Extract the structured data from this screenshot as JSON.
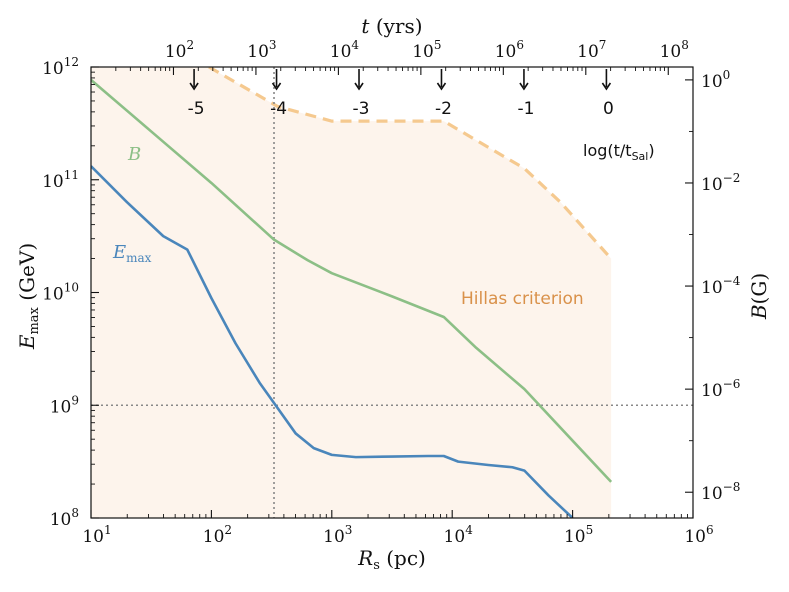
{
  "chart_data": {
    "type": "line",
    "xlabel": "R_s (pc)",
    "xlabel_main": "R",
    "xlabel_sub": "s",
    "xlabel_unit": " (pc)",
    "ylabel_left": "E_max (GeV)",
    "ylabel_left_main": "E",
    "ylabel_left_sub": "max",
    "ylabel_left_unit": " (GeV)",
    "ylabel_right": "B(G)",
    "ylabel_right_main": "B",
    "ylabel_right_unit": "(G)",
    "top_label": "t (yrs)",
    "top_label_main": "t",
    "top_label_unit": " (yrs)",
    "xlim_log10": [
      1,
      6
    ],
    "ylim_left_log10": [
      8,
      12
    ],
    "ylim_right_log10": [
      -8.5,
      0.25
    ],
    "toplim_log10": [
      1,
      8.3
    ],
    "x_ticks": [
      {
        "base": "10",
        "exp": "1"
      },
      {
        "base": "10",
        "exp": "2"
      },
      {
        "base": "10",
        "exp": "3"
      },
      {
        "base": "10",
        "exp": "4"
      },
      {
        "base": "10",
        "exp": "5"
      },
      {
        "base": "10",
        "exp": "6"
      }
    ],
    "left_ticks": [
      {
        "base": "10",
        "exp": "8"
      },
      {
        "base": "10",
        "exp": "9"
      },
      {
        "base": "10",
        "exp": "10"
      },
      {
        "base": "10",
        "exp": "11"
      },
      {
        "base": "10",
        "exp": "12"
      }
    ],
    "right_ticks": [
      {
        "base": "10",
        "exp": "−8"
      },
      {
        "base": "10",
        "exp": "−6"
      },
      {
        "base": "10",
        "exp": "−4"
      },
      {
        "base": "10",
        "exp": "−2"
      },
      {
        "base": "10",
        "exp": "0"
      }
    ],
    "top_ticks": [
      {
        "base": "10",
        "exp": "2"
      },
      {
        "base": "10",
        "exp": "3"
      },
      {
        "base": "10",
        "exp": "4"
      },
      {
        "base": "10",
        "exp": "5"
      },
      {
        "base": "10",
        "exp": "6"
      },
      {
        "base": "10",
        "exp": "7"
      },
      {
        "base": "10",
        "exp": "8"
      }
    ],
    "series": [
      {
        "name": "B",
        "label_main": "B",
        "axis": "right",
        "color": "#8cbf86",
        "points": [
          [
            1.0,
            0.0
          ],
          [
            1.5,
            -1.0
          ],
          [
            2.0,
            -2.0
          ],
          [
            2.52,
            -3.1
          ],
          [
            2.8,
            -3.5
          ],
          [
            3.0,
            -3.75
          ],
          [
            3.5,
            -4.2
          ],
          [
            3.93,
            -4.6
          ],
          [
            4.2,
            -5.2
          ],
          [
            4.6,
            -6.0
          ],
          [
            5.0,
            -7.0
          ],
          [
            5.32,
            -7.8
          ]
        ]
      },
      {
        "name": "E_max",
        "label_main": "E",
        "label_sub": "max",
        "axis": "left",
        "color": "#4a86bb",
        "points": [
          [
            1.0,
            11.12
          ],
          [
            1.3,
            10.8
          ],
          [
            1.6,
            10.5
          ],
          [
            1.8,
            10.38
          ],
          [
            2.0,
            9.95
          ],
          [
            2.2,
            9.55
          ],
          [
            2.4,
            9.2
          ],
          [
            2.5,
            9.05
          ],
          [
            2.7,
            8.75
          ],
          [
            2.85,
            8.62
          ],
          [
            3.0,
            8.56
          ],
          [
            3.2,
            8.54
          ],
          [
            3.5,
            8.545
          ],
          [
            3.8,
            8.55
          ],
          [
            3.93,
            8.55
          ],
          [
            4.05,
            8.5
          ],
          [
            4.3,
            8.47
          ],
          [
            4.5,
            8.45
          ],
          [
            4.6,
            8.42
          ],
          [
            4.8,
            8.2
          ],
          [
            5.0,
            8.0
          ]
        ]
      }
    ],
    "hillas_boundary": {
      "name": "Hillas criterion",
      "color": "#f5c98f",
      "fill": "#fdf4ec",
      "left_points": [
        [
          1.0,
          12.0
        ],
        [
          1.98,
          12.0
        ],
        [
          2.55,
          11.65
        ],
        [
          3.0,
          11.52
        ],
        [
          3.5,
          11.52
        ],
        [
          3.93,
          11.52
        ],
        [
          4.2,
          11.35
        ],
        [
          4.6,
          11.1
        ],
        [
          4.9,
          10.8
        ],
        [
          5.32,
          10.3
        ]
      ]
    },
    "arrows": {
      "labels": [
        "-5",
        "-4",
        "-3",
        "-2",
        "-1",
        "0"
      ],
      "top_log10": [
        2.25,
        3.25,
        4.25,
        5.25,
        6.25,
        7.25
      ]
    },
    "reference_lines": {
      "vertical_x_log10": 2.52,
      "horizontal_y_log10": 9.0
    },
    "annotations": {
      "hillas": "Hillas criterion",
      "arrows_title_prefix": "log(t/t",
      "arrows_title_sub": "Sal",
      "arrows_title_suffix": ")"
    }
  }
}
